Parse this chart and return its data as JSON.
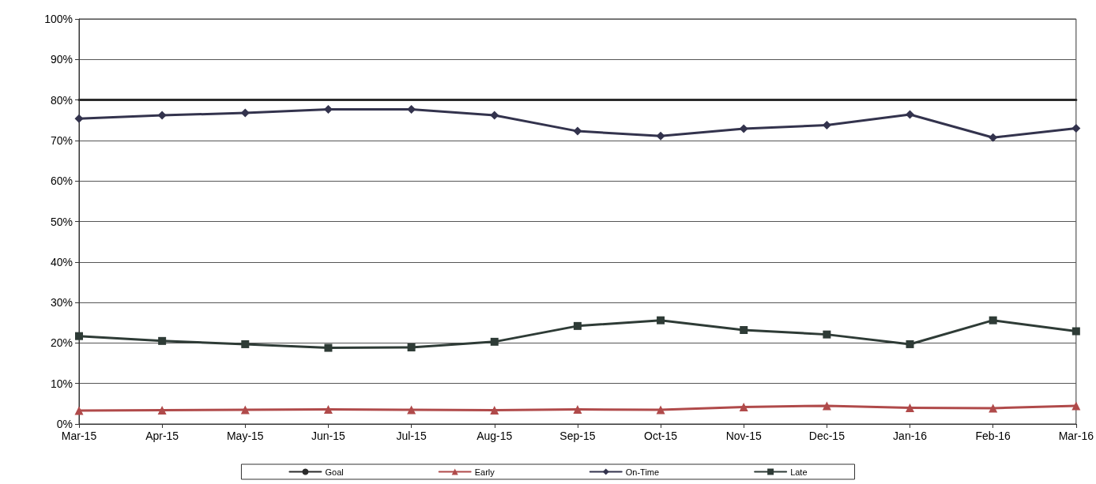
{
  "chart_data": {
    "type": "line",
    "categories": [
      "Mar-15",
      "Apr-15",
      "May-15",
      "Jun-15",
      "Jul-15",
      "Aug-15",
      "Sep-15",
      "Oct-15",
      "Nov-15",
      "Dec-15",
      "Jan-16",
      "Feb-16",
      "Mar-16"
    ],
    "series": [
      {
        "name": "Goal",
        "color": "#2b2b2b",
        "marker": "none",
        "values": [
          80,
          80,
          80,
          80,
          80,
          80,
          80,
          80,
          80,
          80,
          80,
          80,
          80
        ]
      },
      {
        "name": "Early",
        "color": "#b04a4a",
        "marker": "triangle",
        "values": [
          3.3,
          3.4,
          3.5,
          3.6,
          3.5,
          3.4,
          3.6,
          3.5,
          4.2,
          4.5,
          4.0,
          3.9,
          4.5
        ]
      },
      {
        "name": "On-Time",
        "color": "#33334d",
        "marker": "diamond",
        "values": [
          75.4,
          76.2,
          76.8,
          77.7,
          77.7,
          76.2,
          72.3,
          71.1,
          72.9,
          73.8,
          76.4,
          70.7,
          73.0
        ]
      },
      {
        "name": "Late",
        "color": "#2e3b36",
        "marker": "square",
        "values": [
          21.7,
          20.5,
          19.7,
          18.8,
          18.9,
          20.3,
          24.2,
          25.6,
          23.2,
          22.1,
          19.7,
          25.6,
          22.9
        ]
      }
    ],
    "ylim": [
      0,
      100
    ],
    "yticks": [
      {
        "value": 0,
        "label": "0%"
      },
      {
        "value": 10,
        "label": "10%"
      },
      {
        "value": 20,
        "label": "20%"
      },
      {
        "value": 30,
        "label": "30%"
      },
      {
        "value": 40,
        "label": "40%"
      },
      {
        "value": 50,
        "label": "50%"
      },
      {
        "value": 60,
        "label": "60%"
      },
      {
        "value": 70,
        "label": "70%"
      },
      {
        "value": 80,
        "label": "80%"
      },
      {
        "value": 90,
        "label": "90%"
      },
      {
        "value": 100,
        "label": "100%"
      }
    ],
    "grid": "y",
    "legend": "bottom",
    "line_style": "solid"
  }
}
